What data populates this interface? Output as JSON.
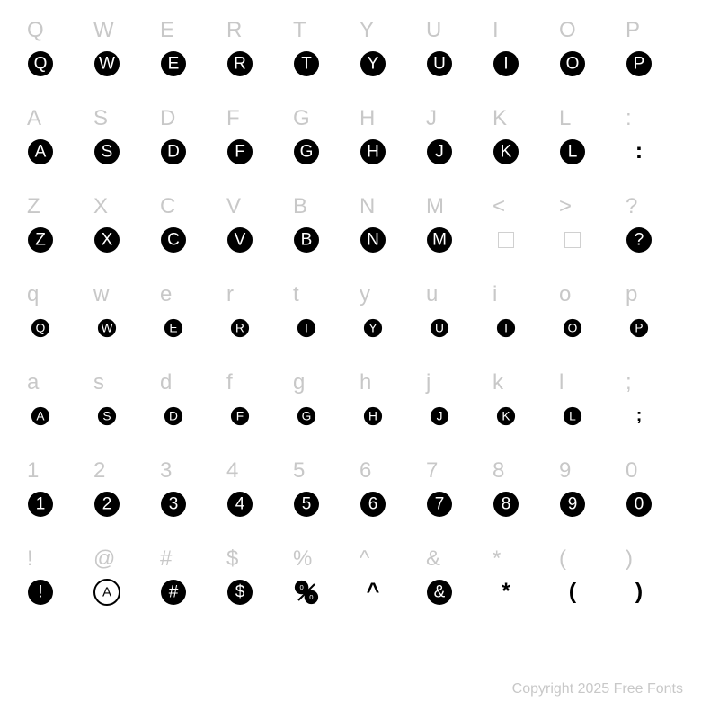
{
  "copyright": "Copyright 2025 Free Fonts",
  "colors": {
    "label": "#c8c8c8",
    "glyph_fill": "#000000",
    "background": "#ffffff",
    "box_border": "#d0d0d0"
  },
  "label_fontsize": 24,
  "glyph_radius_large": 14,
  "glyph_radius_small": 11,
  "rows": [
    {
      "size": "large",
      "cells": [
        {
          "label": "Q",
          "type": "circle-letter",
          "letter": "Q"
        },
        {
          "label": "W",
          "type": "circle-letter",
          "letter": "W"
        },
        {
          "label": "E",
          "type": "circle-letter",
          "letter": "E"
        },
        {
          "label": "R",
          "type": "circle-letter",
          "letter": "R"
        },
        {
          "label": "T",
          "type": "circle-letter",
          "letter": "T"
        },
        {
          "label": "Y",
          "type": "circle-letter",
          "letter": "Y"
        },
        {
          "label": "U",
          "type": "circle-letter",
          "letter": "U"
        },
        {
          "label": "I",
          "type": "circle-letter",
          "letter": "I"
        },
        {
          "label": "O",
          "type": "circle-letter",
          "letter": "O"
        },
        {
          "label": "P",
          "type": "circle-letter",
          "letter": "P"
        }
      ]
    },
    {
      "size": "large",
      "cells": [
        {
          "label": "A",
          "type": "circle-letter",
          "letter": "A"
        },
        {
          "label": "S",
          "type": "circle-letter",
          "letter": "S"
        },
        {
          "label": "D",
          "type": "circle-letter",
          "letter": "D"
        },
        {
          "label": "F",
          "type": "circle-letter",
          "letter": "F"
        },
        {
          "label": "G",
          "type": "circle-letter",
          "letter": "G"
        },
        {
          "label": "H",
          "type": "circle-letter",
          "letter": "H"
        },
        {
          "label": "J",
          "type": "circle-letter",
          "letter": "J"
        },
        {
          "label": "K",
          "type": "circle-letter",
          "letter": "K"
        },
        {
          "label": "L",
          "type": "circle-letter",
          "letter": "L"
        },
        {
          "label": ":",
          "type": "text-glyph",
          "text": ":"
        }
      ]
    },
    {
      "size": "large",
      "cells": [
        {
          "label": "Z",
          "type": "circle-letter",
          "letter": "Z"
        },
        {
          "label": "X",
          "type": "circle-letter",
          "letter": "X"
        },
        {
          "label": "C",
          "type": "circle-letter",
          "letter": "C"
        },
        {
          "label": "V",
          "type": "circle-letter",
          "letter": "V"
        },
        {
          "label": "B",
          "type": "circle-letter",
          "letter": "B"
        },
        {
          "label": "N",
          "type": "circle-letter",
          "letter": "N"
        },
        {
          "label": "M",
          "type": "circle-letter",
          "letter": "M"
        },
        {
          "label": "<",
          "type": "box"
        },
        {
          "label": ">",
          "type": "box"
        },
        {
          "label": "?",
          "type": "circle-letter",
          "letter": "?"
        }
      ]
    },
    {
      "size": "small",
      "cells": [
        {
          "label": "q",
          "type": "circle-letter",
          "letter": "Q"
        },
        {
          "label": "w",
          "type": "circle-letter",
          "letter": "W"
        },
        {
          "label": "e",
          "type": "circle-letter",
          "letter": "E"
        },
        {
          "label": "r",
          "type": "circle-letter",
          "letter": "R"
        },
        {
          "label": "t",
          "type": "circle-letter",
          "letter": "T"
        },
        {
          "label": "y",
          "type": "circle-letter",
          "letter": "Y"
        },
        {
          "label": "u",
          "type": "circle-letter",
          "letter": "U"
        },
        {
          "label": "i",
          "type": "circle-letter",
          "letter": "I"
        },
        {
          "label": "o",
          "type": "circle-letter",
          "letter": "O"
        },
        {
          "label": "p",
          "type": "circle-letter",
          "letter": "P"
        }
      ]
    },
    {
      "size": "small",
      "cells": [
        {
          "label": "a",
          "type": "circle-letter",
          "letter": "A"
        },
        {
          "label": "s",
          "type": "circle-letter",
          "letter": "S"
        },
        {
          "label": "d",
          "type": "circle-letter",
          "letter": "D"
        },
        {
          "label": "f",
          "type": "circle-letter",
          "letter": "F"
        },
        {
          "label": "g",
          "type": "circle-letter",
          "letter": "G"
        },
        {
          "label": "h",
          "type": "circle-letter",
          "letter": "H"
        },
        {
          "label": "j",
          "type": "circle-letter",
          "letter": "J"
        },
        {
          "label": "k",
          "type": "circle-letter",
          "letter": "K"
        },
        {
          "label": "l",
          "type": "circle-letter",
          "letter": "L"
        },
        {
          "label": ";",
          "type": "text-glyph",
          "text": ";"
        }
      ]
    },
    {
      "size": "large",
      "cells": [
        {
          "label": "1",
          "type": "circle-letter",
          "letter": "1"
        },
        {
          "label": "2",
          "type": "circle-letter",
          "letter": "2"
        },
        {
          "label": "3",
          "type": "circle-letter",
          "letter": "3"
        },
        {
          "label": "4",
          "type": "circle-letter",
          "letter": "4"
        },
        {
          "label": "5",
          "type": "circle-letter",
          "letter": "5"
        },
        {
          "label": "6",
          "type": "circle-letter",
          "letter": "6"
        },
        {
          "label": "7",
          "type": "circle-letter",
          "letter": "7"
        },
        {
          "label": "8",
          "type": "circle-letter",
          "letter": "8"
        },
        {
          "label": "9",
          "type": "circle-letter",
          "letter": "9"
        },
        {
          "label": "0",
          "type": "circle-letter",
          "letter": "0"
        }
      ]
    },
    {
      "size": "large",
      "cells": [
        {
          "label": "!",
          "type": "circle-letter",
          "letter": "!"
        },
        {
          "label": "@",
          "type": "at-glyph"
        },
        {
          "label": "#",
          "type": "circle-letter",
          "letter": "#"
        },
        {
          "label": "$",
          "type": "circle-letter",
          "letter": "$"
        },
        {
          "label": "%",
          "type": "percent-glyph"
        },
        {
          "label": "^",
          "type": "text-glyph",
          "text": "^"
        },
        {
          "label": "&",
          "type": "circle-letter",
          "letter": "&"
        },
        {
          "label": "*",
          "type": "text-glyph",
          "text": "*"
        },
        {
          "label": "(",
          "type": "text-glyph",
          "text": "("
        },
        {
          "label": ")",
          "type": "text-glyph",
          "text": ")"
        }
      ]
    }
  ]
}
